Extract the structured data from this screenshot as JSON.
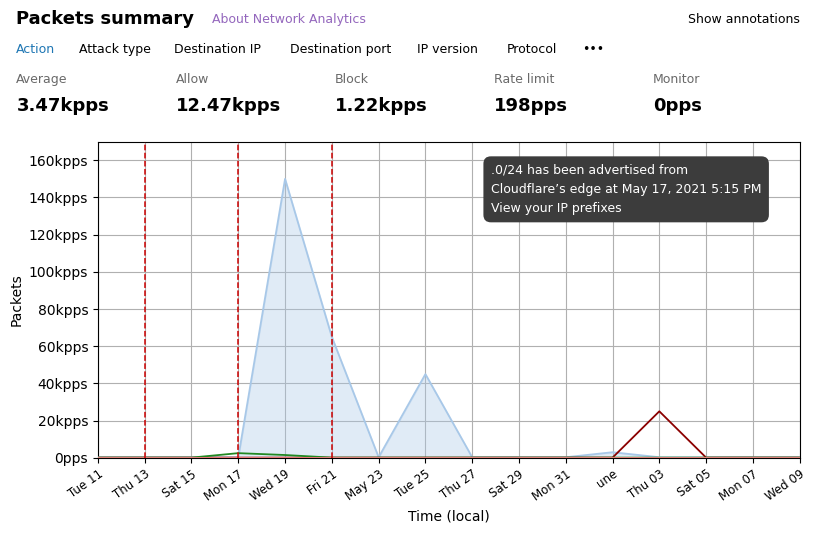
{
  "chart_data": {
    "type": "line",
    "title": "Packets summary",
    "about_text": "About Network Analytics",
    "show_annotations_text": "Show annotations",
    "tabs": [
      "Action",
      "Attack type",
      "Destination IP",
      "Destination port",
      "IP version",
      "Protocol",
      "•••"
    ],
    "stats": [
      {
        "label": "Average",
        "value": "3.47kpps"
      }
    ],
    "x_label": "Time (local)",
    "y_label": "Packets",
    "categories": [
      "Tue 11",
      "Thu 13",
      "Sat 15",
      "Mon 17",
      "Wed 19",
      "Fri 21",
      "May 23",
      "Tue 25",
      "Thu 27",
      "Sat 29",
      "Mon 31",
      "une",
      "Thu 03",
      "Sat 05",
      "Mon 07",
      "Wed 09"
    ],
    "series": [
      {
        "name": "Allow",
        "type": "area",
        "color": "#a8c8e8",
        "summary": "12.47kpps",
        "values": [
          0.3,
          0.3,
          0.3,
          0.3,
          150,
          65,
          0.3,
          45,
          0.3,
          0.3,
          0.3,
          3,
          0.3,
          0.3,
          0.3,
          0.3
        ]
      },
      {
        "name": "Block",
        "type": "line",
        "color": "#8b0000",
        "summary": "1.22kpps",
        "values": [
          0.1,
          0.1,
          0.1,
          0.1,
          0.1,
          0.1,
          0.1,
          0.1,
          0.1,
          0.1,
          0.1,
          0.1,
          25,
          0.1,
          0.1,
          0.1
        ]
      },
      {
        "name": "Rate limit",
        "type": "line",
        "color": "#228822",
        "summary": "198pps",
        "values": [
          0.1,
          0.1,
          0.1,
          2.5,
          1.5,
          0.1,
          0.1,
          0.1,
          0.1,
          0.1,
          0.1,
          0.1,
          0.1,
          0.1,
          0.1,
          0.1
        ]
      },
      {
        "name": "Monitor",
        "type": "line",
        "color": "#f08080",
        "summary": "0pps",
        "values": [
          0.1,
          0.1,
          0.1,
          0.1,
          0.1,
          0.1,
          0.1,
          0.1,
          0.1,
          0.1,
          0.1,
          0.1,
          0.1,
          0.1,
          0.1,
          0.1
        ]
      }
    ],
    "annotation_lines": {
      "x": [
        1,
        3,
        5
      ],
      "color": "#cc0000",
      "line_style": "dashed"
    },
    "annotations": [
      ".0/24 has been advertised from",
      "Cloudflare’s edge at May 17, 2021 5:15 PM",
      "View your IP prefixes"
    ],
    "xlim": [
      0,
      15
    ],
    "ylim": [
      0,
      170
    ],
    "yticks": [
      {
        "value": 0,
        "label": "0pps"
      },
      {
        "value": 20,
        "label": "20kpps"
      },
      {
        "value": 40,
        "label": "40kpps"
      },
      {
        "value": 60,
        "label": "60kpps"
      },
      {
        "value": 80,
        "label": "80kpps"
      },
      {
        "value": 100,
        "label": "100kpps"
      },
      {
        "value": 120,
        "label": "120kpps"
      },
      {
        "value": 140,
        "label": "140kpps"
      },
      {
        "value": 160,
        "label": "160kpps"
      }
    ],
    "grid": true
  }
}
